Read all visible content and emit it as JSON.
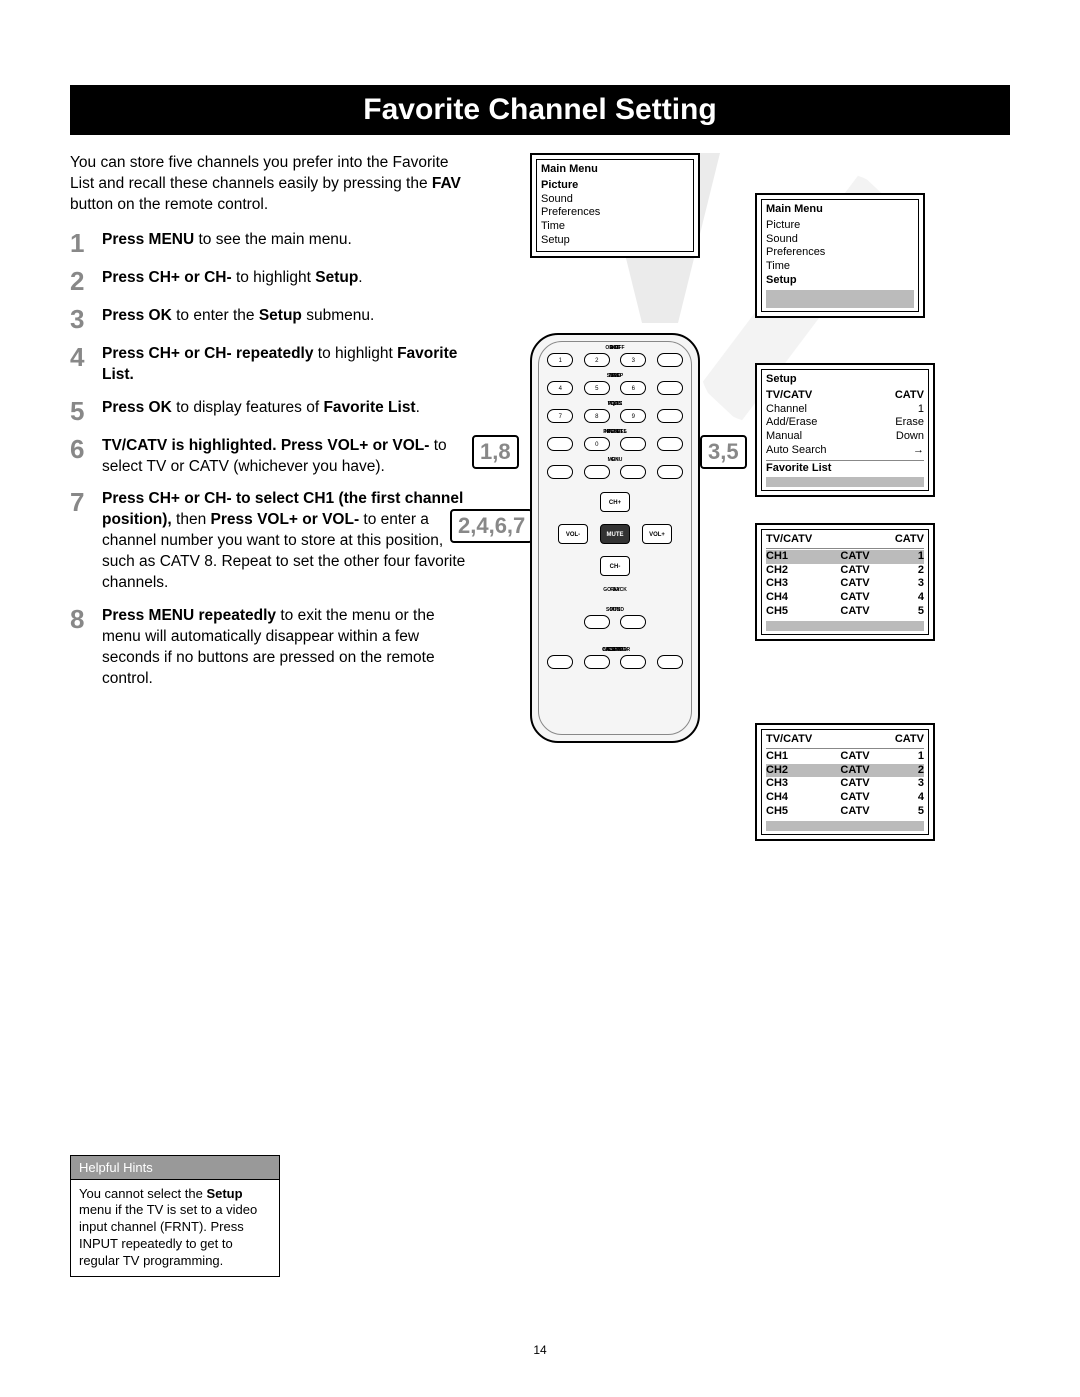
{
  "title": "Favorite Channel Setting",
  "intro_parts": [
    "You can store five channels you prefer into the Favorite List and recall these channels easily by pressing the ",
    "FAV",
    " button on the remote control."
  ],
  "steps": [
    {
      "num": "1",
      "html": "<b>Press MENU</b> to see the main menu."
    },
    {
      "num": "2",
      "html": "<b>Press CH+ or CH-</b> to highlight <b>Setup</b>."
    },
    {
      "num": "3",
      "html": "<b>Press OK</b> to enter the <b>Setup</b> submenu."
    },
    {
      "num": "4",
      "html": "<b>Press CH+ or CH- repeatedly</b> to highlight <b>Favorite List.</b>"
    },
    {
      "num": "5",
      "html": "<b>Press OK</b> to display features of <b>Favorite List</b>."
    },
    {
      "num": "6",
      "html": "<b>TV/CATV is highlighted. Press VOL+ or VOL-</b> to select TV or CATV (whichever you have)."
    },
    {
      "num": "7",
      "html": "<b>Press CH+ or CH- to select CH1 (the first channel position),</b> then <b>Press VOL+ or VOL-</b> to enter a channel number you want to store at this position, such as CATV 8. Repeat to set the other four favorite channels."
    },
    {
      "num": "8",
      "html": "<b>Press MENU repeatedly</b> to exit the menu or the menu will automatically disappear within a few seconds if no buttons are pressed on the remote control."
    }
  ],
  "callouts": {
    "left": "1,8",
    "right": "3,5",
    "bottom": "2,4,6,7"
  },
  "remote": {
    "row_labels": [
      [
        "+·?",
        "ABC",
        "DEF",
        "ON·OFF"
      ],
      [
        "GHI",
        "JKL",
        "MNO",
        "SLEEP"
      ],
      [
        "PQRS",
        "TUV",
        "WXYZ",
        "CC"
      ],
      [
        "INPUT",
        "",
        "PRESETS",
        "INFO/DEL"
      ],
      [
        "MENU",
        "",
        "",
        "OK"
      ]
    ],
    "num_rows": [
      [
        "1",
        "2",
        "3",
        ""
      ],
      [
        "4",
        "5",
        "6",
        ""
      ],
      [
        "7",
        "8",
        "9",
        ""
      ],
      [
        "",
        "0",
        "",
        ""
      ]
    ],
    "nav": {
      "up": "CH+",
      "down": "CH-",
      "left": "VOL-",
      "right": "VOL+",
      "center": "MUTE"
    },
    "below_nav": [
      "GO BACK",
      "",
      "",
      "FAV"
    ],
    "row6_labels": [
      "",
      "MTS",
      "SOUND",
      ""
    ],
    "row7_labels": [
      "NOTEPAD",
      "CAPS",
      "INSERT",
      "CALENDAR"
    ]
  },
  "osd1": {
    "title": "Main Menu",
    "items": [
      "Picture",
      "Sound",
      "Preferences",
      "Time",
      "Setup"
    ],
    "highlight": 0
  },
  "osd2": {
    "title": "Main Menu",
    "items": [
      "Picture",
      "Sound",
      "Preferences",
      "Time",
      "Setup"
    ],
    "highlight": 4
  },
  "osd3": {
    "title": "Setup",
    "rows": [
      [
        "TV/CATV",
        "CATV"
      ],
      [
        "Channel",
        "1"
      ],
      [
        "Add/Erase",
        "Erase"
      ],
      [
        "Manual",
        "Down"
      ],
      [
        "Auto Search",
        "→"
      ]
    ],
    "footer": "Favorite List",
    "highlight": 0
  },
  "osd4": {
    "header": [
      "TV/CATV",
      "CATV"
    ],
    "rows": [
      [
        "CH1",
        "CATV",
        "1"
      ],
      [
        "CH2",
        "CATV",
        "2"
      ],
      [
        "CH3",
        "CATV",
        "3"
      ],
      [
        "CH4",
        "CATV",
        "4"
      ],
      [
        "CH5",
        "CATV",
        "5"
      ]
    ],
    "highlight": 0
  },
  "osd5": {
    "header": [
      "TV/CATV",
      "CATV"
    ],
    "rows": [
      [
        "CH1",
        "CATV",
        "1"
      ],
      [
        "CH2",
        "CATV",
        "2"
      ],
      [
        "CH3",
        "CATV",
        "3"
      ],
      [
        "CH4",
        "CATV",
        "4"
      ],
      [
        "CH5",
        "CATV",
        "5"
      ]
    ],
    "highlight": 1
  },
  "hints": {
    "title": "Helpful Hints",
    "body_parts": [
      "You cannot select the ",
      "Setup",
      " menu if the TV is set to a video input channel (FRNT). Press INPUT repeatedly to get to regular TV programming."
    ]
  },
  "page_number": "14",
  "colors": {
    "title_bg": "#000000",
    "title_fg": "#ffffff",
    "stepnum": "#888888",
    "hint_bg": "#999999",
    "highlight": "#bbbbbb",
    "beam": "#dddddd"
  }
}
